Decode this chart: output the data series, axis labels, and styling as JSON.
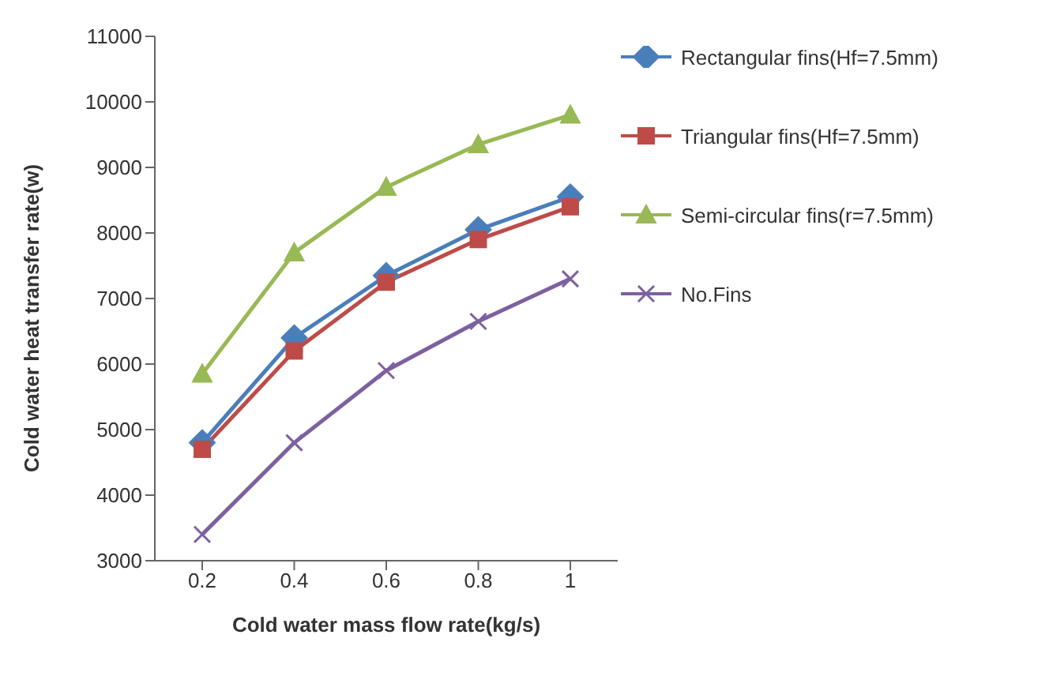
{
  "chart_data": {
    "type": "line",
    "xlabel": "Cold water mass flow rate(kg/s)",
    "ylabel": "Cold water heat transfer rate(w)",
    "categories": [
      "0.2",
      "0.4",
      "0.6",
      "0.8",
      "1"
    ],
    "series": [
      {
        "name": "Rectangular fins(Hf=7.5mm)",
        "color": "#4a7ebb",
        "marker": "diamond",
        "values": [
          4800,
          6400,
          7350,
          8050,
          8550
        ]
      },
      {
        "name": "Triangular fins(Hf=7.5mm)",
        "color": "#be4b48",
        "marker": "square",
        "values": [
          4700,
          6200,
          7250,
          7900,
          8400
        ]
      },
      {
        "name": "Semi-circular fins(r=7.5mm)",
        "color": "#98b954",
        "marker": "triangle",
        "values": [
          5850,
          7700,
          8700,
          9350,
          9800
        ]
      },
      {
        "name": "No.Fins",
        "color": "#7d60a0",
        "marker": "cross",
        "values": [
          3400,
          4800,
          5900,
          6650,
          7300
        ]
      }
    ],
    "ylim": [
      3000,
      11000
    ],
    "yticks": [
      3000,
      4000,
      5000,
      6000,
      7000,
      8000,
      9000,
      10000,
      11000
    ],
    "grid": false,
    "legend": "right"
  }
}
